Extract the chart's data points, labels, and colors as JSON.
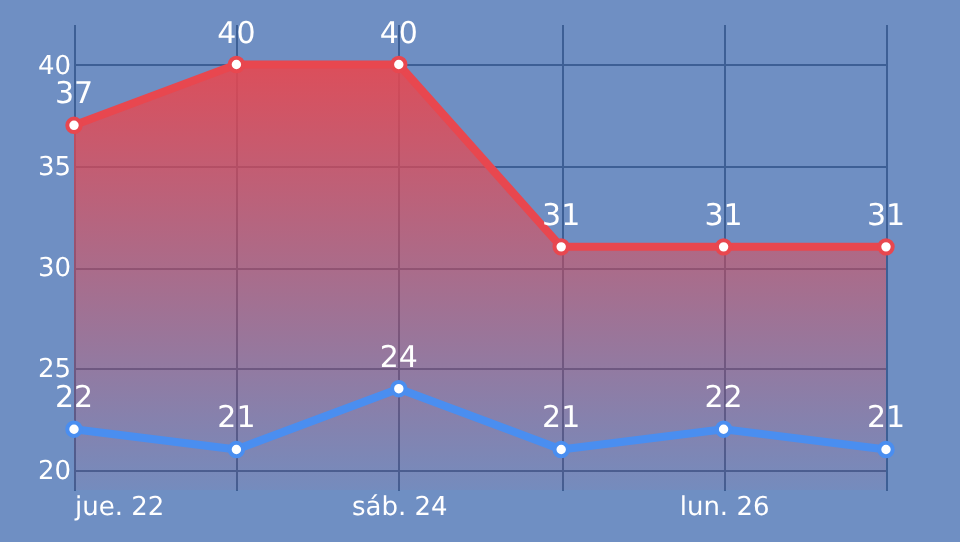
{
  "chart_data": {
    "type": "line",
    "categories": [
      "jue. 22",
      null,
      "sáb. 24",
      null,
      "lun. 26",
      null
    ],
    "series": [
      {
        "type": "area",
        "color": "#e8474f",
        "values": [
          37,
          40,
          40,
          31,
          31,
          31
        ]
      },
      {
        "color": "#4a8ef0",
        "values": [
          22,
          21,
          24,
          21,
          22,
          21
        ]
      }
    ],
    "ylim": [
      19,
      42
    ],
    "yticks": [
      20,
      25,
      30,
      35,
      40
    ],
    "grid": true,
    "data_labels": true,
    "marker": "circle"
  }
}
